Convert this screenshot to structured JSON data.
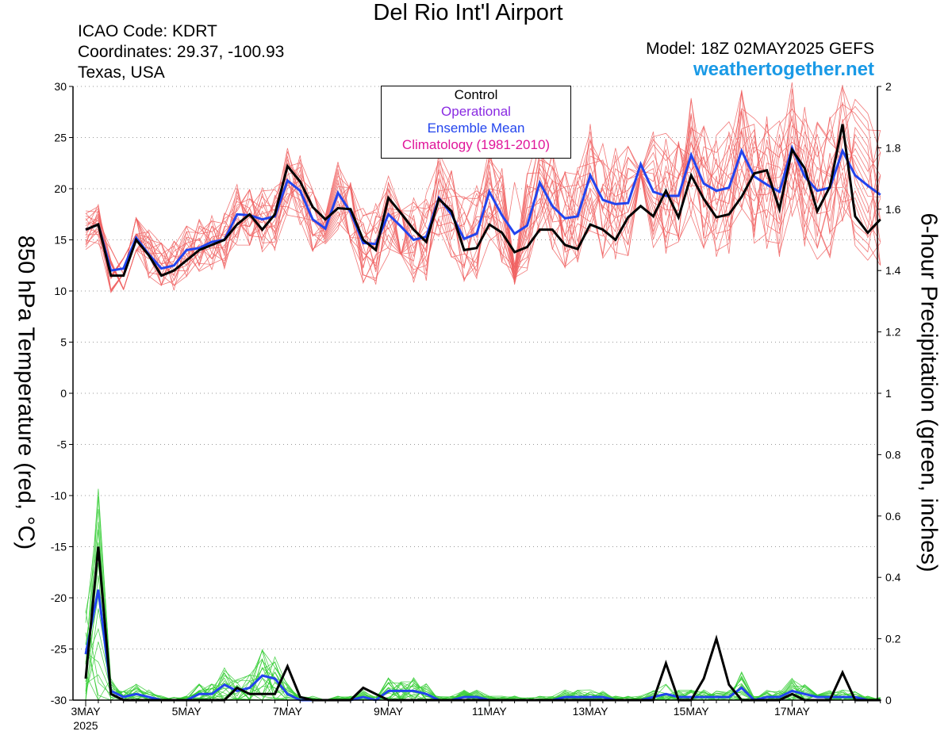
{
  "header": {
    "title": "Del Rio Int'l Airport",
    "icao": "ICAO Code: KDRT",
    "coords": "Coordinates: 29.37, -100.93",
    "region": "Texas, USA",
    "model": "Model: 18Z 02MAY2025 GEFS",
    "site": "weathertogether.net"
  },
  "legend": {
    "control": "Control",
    "operational": "Operational",
    "mean": "Ensemble Mean",
    "clim": "Climatology (1981-2010)"
  },
  "colors": {
    "control": "#000000",
    "operational": "#8a2be2",
    "mean": "#2244ee",
    "clim": "#e0169a",
    "members_temp": "#f06060",
    "members_precip": "#33cc33",
    "site": "#1a9ae6"
  },
  "chart_data": {
    "type": "line",
    "y_left": {
      "label": "850 hPa Temperature (red, °C)",
      "lim": [
        -30,
        30
      ],
      "ticks": [
        30,
        25,
        20,
        15,
        10,
        5,
        0,
        -5,
        -10,
        -15,
        -20,
        -25,
        -30
      ]
    },
    "y_right": {
      "label": "6-hour Precipitation (green, inches)",
      "lim": [
        0,
        2
      ],
      "ticks": [
        "2",
        "1.8",
        "1.6",
        "1.4",
        "1.2",
        "1",
        "0.8",
        "0.6",
        "0.4",
        "0.2",
        "0"
      ]
    },
    "x_ticks": [
      "3MAY",
      "5MAY",
      "7MAY",
      "9MAY",
      "11MAY",
      "13MAY",
      "15MAY",
      "17MAY"
    ],
    "x_sub": "2025",
    "x_time_axis": {
      "start": "2025-05-03 00Z",
      "step": "6h",
      "points": 64
    },
    "grid": "dotted horizontal",
    "temp_control": [
      16,
      16.5,
      11.5,
      11.5,
      15,
      13.5,
      11.5,
      12,
      13,
      14,
      14.5,
      15,
      16.5,
      17.5,
      16,
      17.5,
      22.2,
      20.7,
      18.2,
      17,
      18.1,
      18,
      15,
      14,
      19.1,
      17.6,
      16,
      14.8,
      19,
      17.8,
      14,
      14.2,
      16.5,
      15.7,
      13.8,
      14.3,
      16,
      16,
      14.5,
      14.1,
      16.5,
      16,
      15,
      17.2,
      18.3,
      17.3,
      19.8,
      17.2,
      21.3,
      19,
      17.2,
      17.5,
      19.2,
      21.5,
      21.8,
      18,
      23.8,
      22,
      17.8,
      20.2,
      26.3,
      17.3,
      15.7,
      17
    ],
    "temp_mean": [
      16,
      16.5,
      12,
      12.2,
      15.2,
      13.6,
      12.2,
      12.5,
      14,
      14.2,
      14.8,
      15,
      17.5,
      17.4,
      17,
      17.3,
      20.8,
      19.8,
      17,
      16.1,
      19.6,
      17.7,
      14.7,
      14.6,
      17.5,
      16.3,
      15,
      15.3,
      19.1,
      17.5,
      15.1,
      15.6,
      19.7,
      17.4,
      15.6,
      16.4,
      20.6,
      18.3,
      17.1,
      17.3,
      21.3,
      18.9,
      18.5,
      18.6,
      22.4,
      19.7,
      19.3,
      19.3,
      23.3,
      20.5,
      19.8,
      20.1,
      23.7,
      21.2,
      20.4,
      19.7,
      24,
      21.2,
      19.8,
      20.1,
      23.7,
      21.3,
      20.3,
      19.4
    ],
    "precip_control": [
      0.07,
      0.5,
      0.02,
      0,
      0,
      0,
      0,
      0,
      0,
      0,
      0,
      0,
      0.04,
      0.02,
      0.02,
      0.02,
      0.11,
      0.01,
      0,
      0,
      0,
      0,
      0.04,
      0.02,
      0,
      0,
      0,
      0,
      0,
      0,
      0,
      0,
      0,
      0,
      0,
      0,
      0,
      0,
      0,
      0,
      0,
      0,
      0,
      0,
      0,
      0,
      0.12,
      0,
      0,
      0.07,
      0.2,
      0.05,
      0,
      0,
      0,
      0,
      0.02,
      0,
      0,
      0,
      0.09,
      0,
      0,
      0
    ],
    "precip_mean": [
      0.15,
      0.36,
      0.03,
      0.01,
      0.02,
      0.01,
      0,
      0,
      0,
      0.02,
      0.02,
      0.05,
      0.03,
      0.04,
      0.08,
      0.07,
      0.02,
      0,
      0,
      0,
      0,
      0,
      0.01,
      0,
      0.03,
      0.03,
      0.03,
      0.02,
      0,
      0,
      0.01,
      0.01,
      0,
      0,
      0,
      0,
      0,
      0,
      0.01,
      0.01,
      0.01,
      0.01,
      0,
      0,
      0,
      0.01,
      0.02,
      0.01,
      0.01,
      0.01,
      0.01,
      0.01,
      0.04,
      0,
      0.01,
      0.01,
      0.03,
      0.02,
      0.01,
      0.01,
      0.01,
      0.01,
      0,
      0
    ]
  }
}
